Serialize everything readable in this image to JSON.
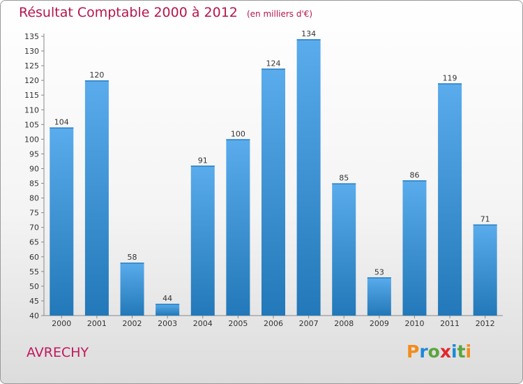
{
  "chart_data": {
    "type": "bar",
    "title": "Résultat Comptable 2000 à 2012",
    "unit_label": "(en milliers d'€)",
    "categories": [
      "2000",
      "2001",
      "2002",
      "2003",
      "2004",
      "2005",
      "2006",
      "2007",
      "2008",
      "2009",
      "2010",
      "2011",
      "2012"
    ],
    "values": [
      104,
      120,
      58,
      44,
      91,
      100,
      124,
      134,
      85,
      53,
      86,
      119,
      71
    ],
    "ylim": [
      40,
      135
    ],
    "ytick_step": 5,
    "xlabel": "",
    "ylabel": "",
    "grid": false
  },
  "footer": {
    "town": "AVRECHY",
    "logo": "Proxiti"
  },
  "colors": {
    "title": "#b5154d",
    "bar_light": "#5aacec",
    "bar_dark": "#2278b8",
    "logo_letters": [
      "#f28c1c",
      "#1e88d6",
      "#5aa53c",
      "#e3262d",
      "#1e88d6",
      "#5aa53c",
      "#f28c1c"
    ]
  }
}
